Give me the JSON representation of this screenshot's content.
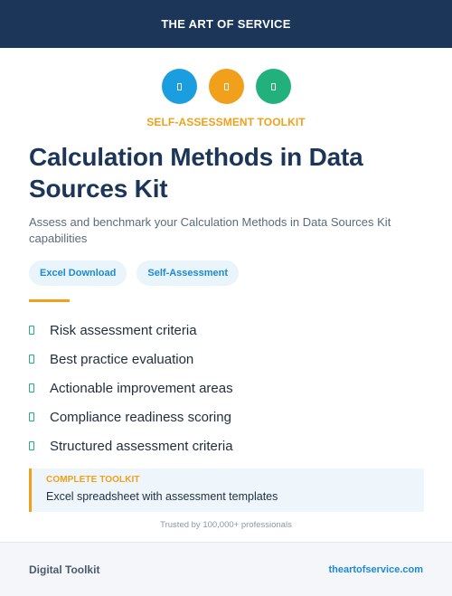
{
  "header": {
    "brand": "THE ART OF SERVICE"
  },
  "icons": [
    {
      "name": "document-icon",
      "color": "#1a9ee0"
    },
    {
      "name": "document-icon",
      "color": "#f0a01a"
    },
    {
      "name": "document-icon",
      "color": "#22b07d"
    }
  ],
  "kicker": "SELF-ASSESSMENT TOOLKIT",
  "title_line1": "Calculation Methods in Data",
  "title_line2": "Sources Kit",
  "subtitle": "Assess and benchmark your Calculation Methods in Data Sources Kit capabilities",
  "tags": [
    "Excel Download",
    "Self-Assessment"
  ],
  "features": [
    "Risk assessment criteria",
    "Best practice evaluation",
    "Actionable improvement areas",
    "Compliance readiness scoring",
    "Structured assessment criteria"
  ],
  "callout": {
    "label": "COMPLETE TOOLKIT",
    "text": "Excel spreadsheet with assessment templates"
  },
  "trusted": "Trusted by 100,000+ professionals",
  "footer": {
    "left": "Digital Toolkit",
    "right": "theartofservice.com"
  },
  "colors": {
    "navy": "#1b3659",
    "orange": "#f0a01a",
    "blue": "#1a9ee0",
    "green": "#22b07d"
  }
}
